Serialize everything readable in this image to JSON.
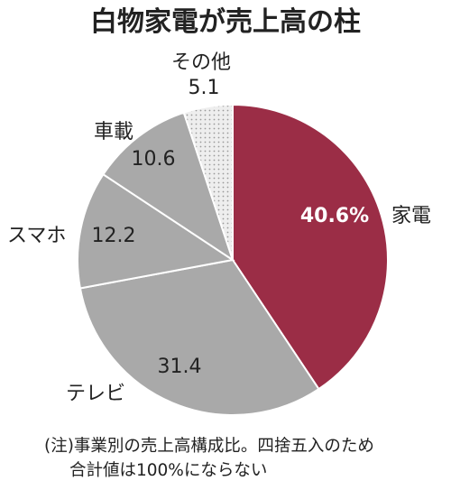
{
  "chart_data": {
    "type": "pie",
    "title": "白物家電が売上高の柱",
    "unit": "%",
    "slices": [
      {
        "label": "家電",
        "value": 40.6,
        "value_text": "40.6%",
        "color": "#9b2d46"
      },
      {
        "label": "テレビ",
        "value": 31.4,
        "value_text": "31.4",
        "color": "#a9a9a9"
      },
      {
        "label": "スマホ",
        "value": 12.2,
        "value_text": "12.2",
        "color": "#a9a9a9"
      },
      {
        "label": "車載",
        "value": 10.6,
        "value_text": "10.6",
        "color": "#a9a9a9"
      },
      {
        "label": "その他",
        "value": 5.1,
        "value_text": "5.1",
        "color": "#e6e6e6",
        "pattern": "dotted"
      }
    ],
    "start": "12 o'clock",
    "direction": "clockwise"
  },
  "note": {
    "line1": "(注)事業別の売上高構成比。四捨五入のため",
    "line2": "合計値は100%にならない"
  }
}
